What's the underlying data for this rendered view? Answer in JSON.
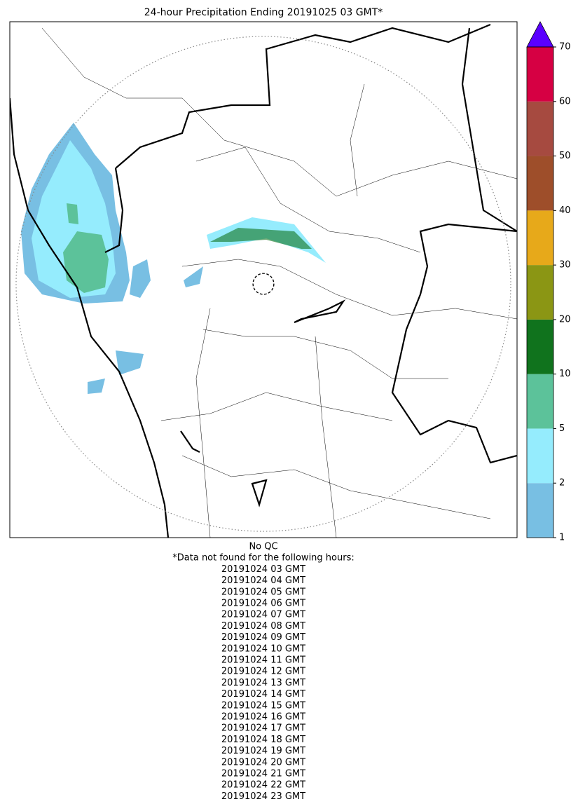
{
  "title": "24-hour Precipitation Ending 20191025 03 GMT*",
  "colorbar": {
    "ticks": [
      1,
      2,
      5,
      10,
      20,
      30,
      40,
      50,
      60,
      70
    ],
    "colors": [
      "#78bfe3",
      "#95ecfd",
      "#5cc29a",
      "#10731d",
      "#8b9614",
      "#e7a91a",
      "#9e4e2a",
      "#a64a40",
      "#d60043"
    ],
    "extend_color": "#5a00ff"
  },
  "footer": {
    "qc": "No QC",
    "note": "*Data not found for the following hours:",
    "hours": [
      "20191024 03 GMT",
      "20191024 04 GMT",
      "20191024 05 GMT",
      "20191024 06 GMT",
      "20191024 07 GMT",
      "20191024 08 GMT",
      "20191024 09 GMT",
      "20191024 10 GMT",
      "20191024 11 GMT",
      "20191024 12 GMT",
      "20191024 13 GMT",
      "20191024 14 GMT",
      "20191024 15 GMT",
      "20191024 16 GMT",
      "20191024 17 GMT",
      "20191024 18 GMT",
      "20191024 19 GMT",
      "20191024 20 GMT",
      "20191024 21 GMT",
      "20191024 22 GMT",
      "20191024 23 GMT"
    ]
  }
}
